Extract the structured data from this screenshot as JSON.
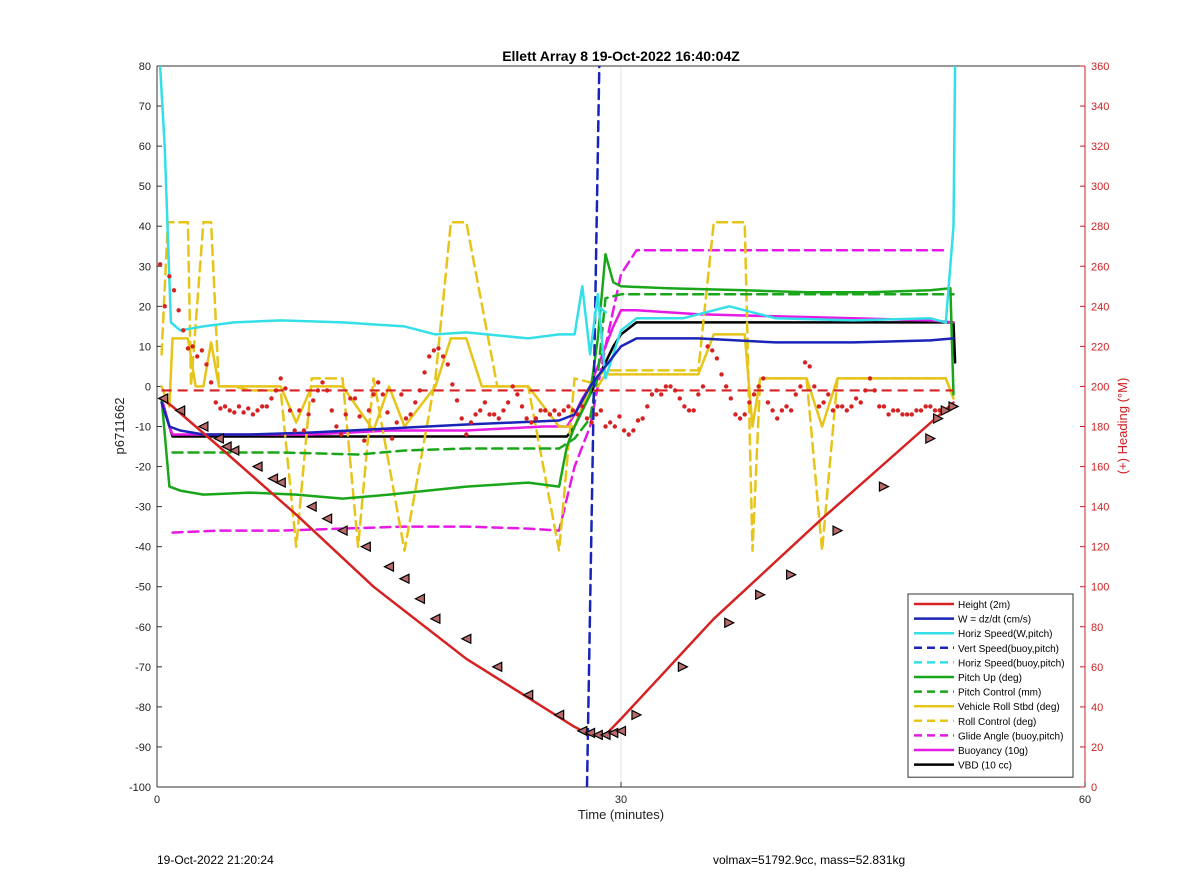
{
  "footer": {
    "timestamp": "19-Oct-2022 21:20:24",
    "info": "volmax=51792.9cc, mass=52.831kg"
  },
  "chart_data": {
    "type": "line",
    "title": "Ellett Array 8 19-Oct-2022 16:40:04Z",
    "xlabel": "Time (minutes)",
    "ylabel": "p6711662",
    "y2label": "(+) Heading (°M)",
    "xlim": [
      0,
      60
    ],
    "ylim": [
      -100,
      80
    ],
    "y2lim": [
      0,
      360
    ],
    "xticks": [
      0,
      30,
      60
    ],
    "yticks": [
      -100,
      -90,
      -80,
      -70,
      -60,
      -50,
      -40,
      -30,
      -20,
      -10,
      0,
      10,
      20,
      30,
      40,
      50,
      60,
      70,
      80
    ],
    "y2ticks": [
      0,
      20,
      40,
      60,
      80,
      100,
      120,
      140,
      160,
      180,
      200,
      220,
      240,
      260,
      280,
      300,
      320,
      340,
      360
    ],
    "grid": "x only",
    "legend_position": "bottom-right",
    "colors": {
      "red": "#d62222",
      "blue": "#1a25b8",
      "cyan": "#35dfe8",
      "green": "#1aa61a",
      "yellow": "#e6c41a",
      "magenta": "#e51be5",
      "black": "#000000",
      "heading_axis": "#cc2020"
    },
    "series": [
      {
        "name": "Height (2m)",
        "color": "red",
        "style": "solid",
        "x": [
          0.3,
          1,
          4,
          9,
          14,
          20,
          27,
          28,
          29,
          30,
          36,
          43,
          51.5
        ],
        "y": [
          -3,
          -5,
          -15,
          -32,
          -50,
          -68,
          -85,
          -87,
          -87,
          -83,
          -58,
          -33,
          -4
        ]
      },
      {
        "name": "W = dz/dt (cm/s)",
        "color": "blue",
        "style": "solid",
        "x": [
          0.3,
          0.8,
          1.5,
          3,
          6,
          10,
          15,
          20,
          26,
          27,
          28,
          29,
          30,
          31,
          35,
          40,
          45,
          50,
          51.5
        ],
        "y": [
          -4,
          -10,
          -11,
          -12,
          -12,
          -11.5,
          -10.5,
          -9.5,
          -8.5,
          -7,
          0,
          5,
          10,
          12,
          12,
          11,
          11,
          11.5,
          12
        ]
      },
      {
        "name": "Horiz Speed(W,pitch)",
        "color": "cyan",
        "style": "solid",
        "x": [
          0.2,
          0.5,
          0.9,
          1.5,
          3,
          5,
          8,
          12,
          16,
          18,
          20,
          24,
          26,
          27,
          27.5,
          28,
          28.5,
          29,
          30,
          31,
          34,
          37,
          40,
          45,
          50,
          51,
          51.5,
          51.6
        ],
        "y": [
          80,
          60,
          16,
          14,
          15,
          16,
          16.5,
          16,
          15,
          13,
          13.5,
          12,
          13,
          13,
          25,
          8,
          23,
          2,
          14,
          17,
          17,
          20,
          17,
          16.5,
          17,
          16,
          40,
          80
        ]
      },
      {
        "name": "Vert Speed(buoy,pitch)",
        "color": "blue",
        "style": "dash",
        "x": [
          27.8,
          28.2,
          28.6
        ],
        "y": [
          -100,
          -10,
          80
        ]
      },
      {
        "name": "Horiz Speed(buoy,pitch)",
        "color": "cyan",
        "style": "dash",
        "x": [
          28.5,
          29.2
        ],
        "y": [
          20,
          18
        ]
      },
      {
        "name": "Pitch Up (deg)",
        "color": "green",
        "style": "solid",
        "x": [
          0.3,
          0.8,
          1.5,
          3,
          6,
          9,
          12,
          15,
          20,
          24,
          26,
          26.5,
          27,
          28,
          28.5,
          29,
          29.5,
          30,
          33,
          38,
          42,
          46,
          50,
          51.3,
          51.5
        ],
        "y": [
          -3,
          -25,
          -26,
          -27,
          -26.5,
          -27,
          -28,
          -27,
          -25,
          -24,
          -25,
          -15,
          -10,
          -2,
          12,
          33,
          26,
          25,
          24.5,
          24,
          23.5,
          23.5,
          24,
          24.5,
          -2
        ]
      },
      {
        "name": "Pitch Control (mm)",
        "color": "green",
        "style": "dash",
        "x": [
          1,
          8,
          13,
          16,
          20,
          24,
          26,
          27,
          28,
          28.5,
          29,
          30,
          33,
          40,
          45,
          50,
          51.5
        ],
        "y": [
          -16.5,
          -16.5,
          -17,
          -16,
          -15.5,
          -15.5,
          -15.5,
          -13,
          -8,
          3,
          22,
          23,
          23,
          23,
          23,
          23,
          23
        ]
      },
      {
        "name": "Vehicle Roll Stbd (deg)",
        "color": "yellow",
        "style": "solid",
        "x": [
          0.3,
          0.8,
          1,
          2,
          2.5,
          3,
          3.5,
          4,
          6,
          8,
          9,
          10,
          12,
          14,
          15,
          16,
          18,
          19,
          20,
          21,
          24,
          26,
          27,
          28,
          28.5,
          29,
          30,
          35,
          36,
          38,
          38.5,
          39,
          42,
          43,
          44,
          50,
          51,
          51.5
        ],
        "y": [
          0,
          -5,
          12,
          12,
          0,
          0,
          11,
          0,
          0,
          0,
          -9,
          0,
          0,
          -11,
          0,
          -10,
          0,
          12,
          12,
          0,
          0,
          -10,
          -10,
          0,
          0,
          3,
          3,
          3,
          13,
          13,
          -10,
          2,
          2,
          -10,
          2,
          2,
          2,
          -3
        ]
      },
      {
        "name": "Roll Control (deg)",
        "color": "yellow",
        "style": "dash",
        "x": [
          0.3,
          0.7,
          1,
          2,
          2.2,
          3,
          3.5,
          4,
          5,
          6,
          8,
          9,
          10,
          12,
          13,
          14,
          16,
          18,
          19,
          20,
          22,
          24,
          26,
          27,
          28,
          29,
          30,
          35,
          36,
          38,
          38.5,
          39,
          42,
          43,
          44,
          50,
          51,
          51.5
        ],
        "y": [
          8,
          41,
          41,
          41,
          0,
          41,
          41,
          0,
          0,
          -1,
          -1,
          -40,
          2,
          2,
          -40,
          2,
          -41,
          2,
          41,
          41,
          0,
          0,
          -41,
          2,
          1,
          4,
          4,
          4,
          41,
          41,
          -41,
          2,
          2,
          -41,
          2,
          2,
          2,
          -3
        ]
      },
      {
        "name": "Glide Angle (buoy,pitch)",
        "color": "magenta",
        "style": "dash",
        "x": [
          1,
          4,
          8,
          12,
          16,
          20,
          24,
          26,
          27,
          28,
          29,
          30,
          31,
          35,
          40,
          45,
          50,
          51
        ],
        "y": [
          -36.5,
          -36,
          -36,
          -35.5,
          -35,
          -35,
          -35.5,
          -36,
          -20,
          -10,
          10,
          28,
          34,
          34,
          34,
          34,
          34,
          34
        ]
      },
      {
        "name": "Buoyancy (10g)",
        "color": "magenta",
        "style": "solid",
        "x": [
          0.3,
          0.8,
          1,
          5,
          10,
          15,
          20,
          25,
          26.5,
          27,
          27.5,
          28,
          28.5,
          29,
          29.5,
          30,
          31,
          35,
          40,
          45,
          50,
          51.5
        ],
        "y": [
          -3,
          -10,
          -12,
          -12,
          -12,
          -11,
          -11,
          -10,
          -10,
          -7,
          -3,
          0,
          5,
          10,
          15,
          19,
          19,
          18,
          17.5,
          17,
          16.5,
          16
        ]
      },
      {
        "name": "VBD (10 cc)",
        "color": "black",
        "style": "solid",
        "x": [
          0.3,
          0.8,
          1,
          5,
          10,
          15,
          20,
          25,
          26.5,
          27,
          27.5,
          28,
          28.5,
          29,
          29.5,
          30,
          31,
          35,
          40,
          45,
          50,
          51.5,
          51.6
        ],
        "y": [
          -3,
          -10,
          -12.5,
          -12.5,
          -12.5,
          -12.5,
          -12.5,
          -12.5,
          -12.5,
          -10,
          -6,
          -2,
          2,
          6,
          10,
          13,
          16,
          16,
          16,
          16,
          16,
          16,
          6
        ]
      }
    ],
    "heading": {
      "axis": "right",
      "color": "red",
      "reference_line": {
        "style": "dash",
        "y": 198
      },
      "points_x": [
        0.2,
        0.5,
        0.8,
        1.1,
        1.4,
        1.7,
        2,
        2.3,
        2.6,
        2.9,
        3.2,
        3.5,
        3.8,
        4.1,
        4.4,
        4.7,
        5,
        5.3,
        5.6,
        5.9,
        6.2,
        6.5,
        6.8,
        7.1,
        7.4,
        7.7,
        8,
        8.3,
        8.6,
        8.9,
        9.2,
        9.5,
        9.8,
        10.1,
        10.4,
        10.7,
        11,
        11.3,
        11.6,
        11.9,
        12.2,
        12.5,
        12.8,
        13.1,
        13.4,
        13.7,
        14,
        14.3,
        14.6,
        14.9,
        15.2,
        15.5,
        15.8,
        16.1,
        16.4,
        16.7,
        17,
        17.3,
        17.6,
        17.9,
        18.2,
        18.5,
        18.8,
        19.1,
        19.4,
        19.7,
        20,
        20.3,
        20.6,
        20.9,
        21.2,
        21.5,
        21.8,
        22.1,
        22.4,
        22.7,
        23,
        23.3,
        23.6,
        23.9,
        24.2,
        24.5,
        24.8,
        25.1,
        25.4,
        25.7,
        26,
        26.3,
        26.6,
        26.9,
        27.2,
        27.5,
        27.8,
        28.1,
        28.4,
        28.7,
        29,
        29.3,
        29.6,
        29.9,
        30.2,
        30.5,
        30.8,
        31.1,
        31.4,
        31.7,
        32,
        32.3,
        32.6,
        32.9,
        33.2,
        33.5,
        33.8,
        34.1,
        34.4,
        34.7,
        35,
        35.3,
        35.6,
        35.9,
        36.2,
        36.5,
        36.8,
        37.1,
        37.4,
        37.7,
        38,
        38.3,
        38.6,
        38.9,
        39.2,
        39.5,
        39.8,
        40.1,
        40.4,
        40.7,
        41,
        41.3,
        41.6,
        41.9,
        42.2,
        42.5,
        42.8,
        43.1,
        43.4,
        43.7,
        44,
        44.3,
        44.6,
        44.9,
        45.2,
        45.5,
        45.8,
        46.1,
        46.4,
        46.7,
        47,
        47.3,
        47.6,
        47.9,
        48.2,
        48.5,
        48.8,
        49.1,
        49.4,
        49.7,
        50,
        50.3,
        50.6,
        50.9,
        51.2
      ],
      "points_y": [
        261,
        240,
        255,
        248,
        238,
        228,
        219,
        220,
        215,
        218,
        211,
        202,
        192,
        189,
        190,
        188,
        187,
        190,
        187,
        189,
        186,
        188,
        190,
        190,
        194,
        198,
        204,
        199,
        188,
        178,
        188,
        178,
        186,
        193,
        198,
        202,
        198,
        188,
        180,
        176,
        186,
        194,
        194,
        185,
        173,
        188,
        196,
        202,
        196,
        187,
        174,
        182,
        196,
        184,
        186,
        192,
        198,
        207,
        215,
        218,
        219,
        215,
        211,
        201,
        193,
        184,
        176,
        182,
        186,
        188,
        192,
        186,
        186,
        184,
        188,
        192,
        200,
        196,
        190,
        184,
        182,
        184,
        188,
        188,
        186,
        188,
        186,
        188,
        190,
        188,
        186,
        190,
        184,
        182,
        186,
        188,
        180,
        182,
        180,
        185,
        178,
        176,
        178,
        183,
        184,
        190,
        196,
        198,
        196,
        200,
        200,
        198,
        194,
        190,
        188,
        188,
        196,
        200,
        220,
        218,
        214,
        206,
        200,
        194,
        186,
        184,
        186,
        192,
        196,
        200,
        204,
        192,
        188,
        184,
        188,
        190,
        188,
        196,
        200,
        212,
        210,
        200,
        190,
        192,
        196,
        188,
        190,
        190,
        188,
        190,
        194,
        192,
        198,
        204,
        198,
        190,
        190,
        186,
        188,
        188,
        186,
        186,
        186,
        188,
        188,
        190,
        190,
        188,
        188,
        188
      ]
    },
    "annotations": {
      "dive_markers": {
        "series": "Height (2m)",
        "symbol": "left-triangle",
        "x": [
          0.4,
          1.5,
          3,
          4,
          4.5,
          5,
          6.5,
          7.5,
          8,
          10,
          11,
          12,
          13.5,
          15,
          16,
          17,
          18,
          20,
          22,
          24,
          26,
          27.5,
          28,
          28.5,
          29,
          29.5,
          30
        ],
        "y": [
          -3,
          -6,
          -10,
          -13,
          -15,
          -16,
          -20,
          -23,
          -24,
          -30,
          -33,
          -36,
          -40,
          -45,
          -48,
          -53,
          -58,
          -63,
          -70,
          -77,
          -82,
          -86,
          -86.5,
          -87,
          -87,
          -86.5,
          -86
        ]
      },
      "climb_markers": {
        "series": "Height (2m)",
        "symbol": "right-triangle",
        "x": [
          31,
          34,
          37,
          39,
          41,
          44,
          47,
          50,
          50.5,
          51,
          51.5
        ],
        "y": [
          -82,
          -70,
          -59,
          -52,
          -47,
          -36,
          -25,
          -13,
          -8,
          -6,
          -5
        ]
      }
    }
  }
}
